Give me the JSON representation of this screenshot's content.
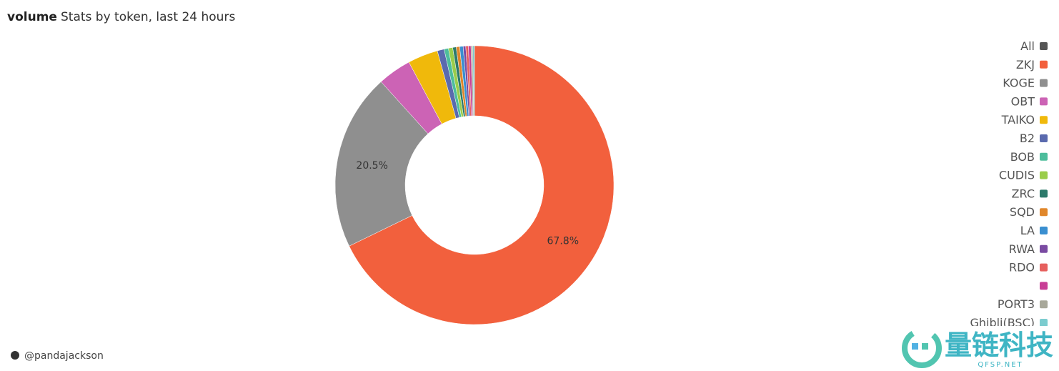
{
  "chart_data": {
    "type": "pie",
    "title": "volume",
    "subtitle": "Stats by token, last 24 hours",
    "legend_all": {
      "label": "All",
      "color": "#555555"
    },
    "categories": [
      "ZKJ",
      "KOGE",
      "OBT",
      "TAIKO",
      "B2",
      "BOB",
      "CUDIS",
      "ZRC",
      "SQD",
      "LA",
      "RWA",
      "RDO",
      null,
      "PORT3",
      "Ghibli(BSC)"
    ],
    "values": [
      67.8,
      20.5,
      3.9,
      3.5,
      0.8,
      0.5,
      0.5,
      0.4,
      0.4,
      0.4,
      0.3,
      0.3,
      0.3,
      0.2,
      0.2
    ],
    "value_labels": [
      "67.8%",
      "20.5%",
      null,
      null,
      null,
      null,
      null,
      null,
      null,
      null,
      null,
      null,
      null,
      null,
      null
    ],
    "colors": [
      "#f2603d",
      "#8f8f8f",
      "#cc63b5",
      "#f0b90b",
      "#5a6aae",
      "#4dbd9c",
      "#9acd4b",
      "#2d7a6b",
      "#e0872b",
      "#3a8fd0",
      "#7a4ba2",
      "#e6605e",
      "#c83e96",
      "#a8a89a",
      "#7ccccf"
    ],
    "legend": "right",
    "author": "@pandajackson",
    "watermark": {
      "brand": "量链科技",
      "site": "QFSP.NET"
    }
  }
}
